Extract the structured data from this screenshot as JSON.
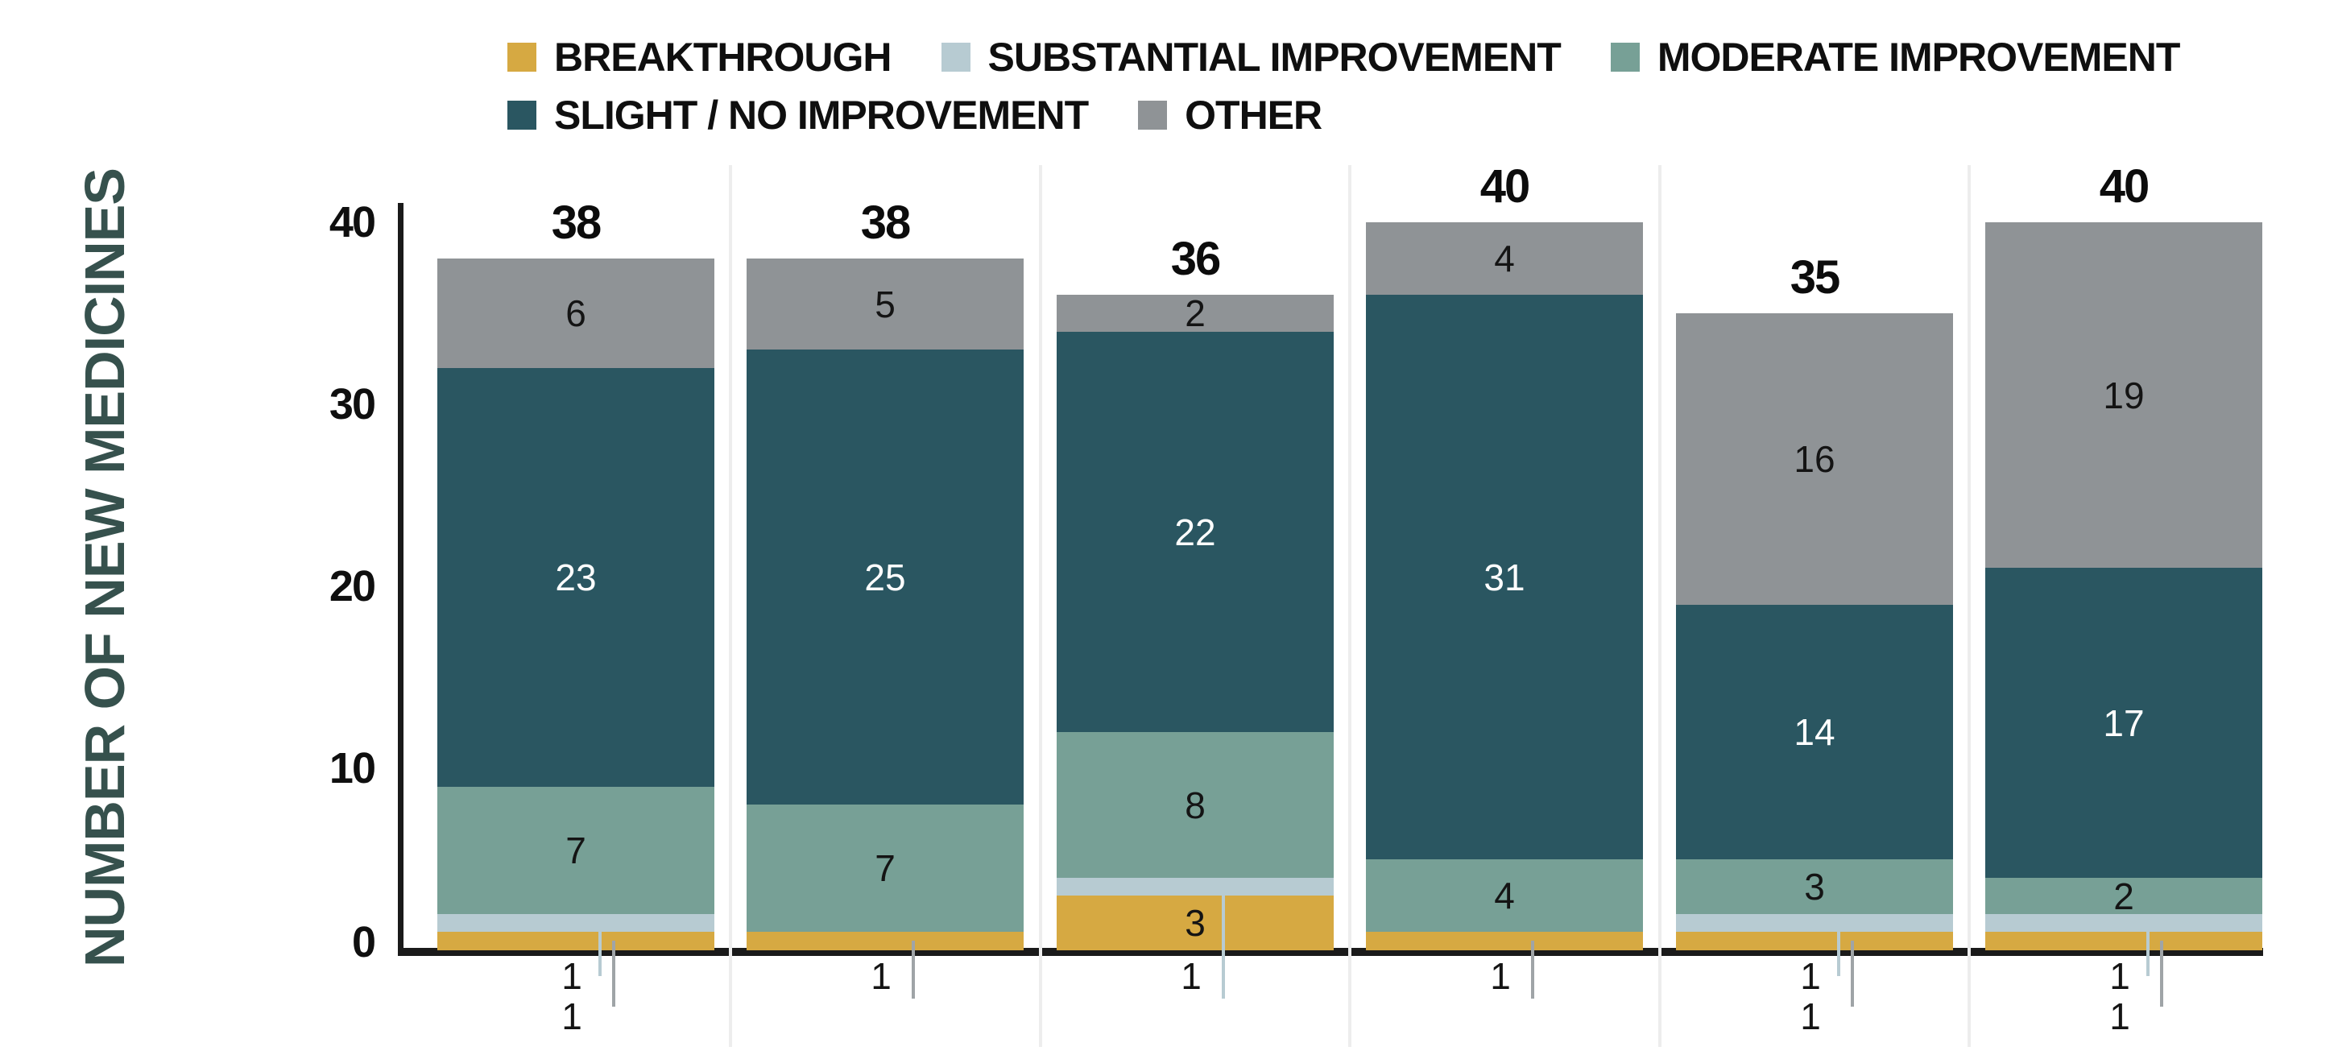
{
  "chart_data": {
    "type": "bar",
    "stacked": true,
    "title": "",
    "ylabel": "NUMBER OF NEW MEDICINES",
    "xlabel": "",
    "ylim": [
      0,
      40
    ],
    "yticks": [
      0,
      10,
      20,
      30,
      40
    ],
    "grid": "none",
    "legend_position": "top",
    "legend_rows": [
      [
        "BREAKTHROUGH",
        "SUBSTANTIAL IMPROVEMENT",
        "MODERATE IMPROVEMENT"
      ],
      [
        "SLIGHT / NO IMPROVEMENT",
        "OTHER"
      ]
    ],
    "series_colors": {
      "BREAKTHROUGH": "#D6A942",
      "SUBSTANTIAL IMPROVEMENT": "#B7CBD2",
      "MODERATE IMPROVEMENT": "#77A096",
      "SLIGHT / NO IMPROVEMENT": "#2A5661",
      "OTHER": "#8F9396"
    },
    "stack_order_bottom_to_top": [
      "BREAKTHROUGH",
      "SUBSTANTIAL IMPROVEMENT",
      "MODERATE IMPROVEMENT",
      "SLIGHT / NO IMPROVEMENT",
      "OTHER"
    ],
    "bars": [
      {
        "total": 38,
        "values": {
          "BREAKTHROUGH": 1,
          "SUBSTANTIAL IMPROVEMENT": 1,
          "MODERATE IMPROVEMENT": 7,
          "SLIGHT / NO IMPROVEMENT": 23,
          "OTHER": 6
        }
      },
      {
        "total": 38,
        "values": {
          "BREAKTHROUGH": 1,
          "SUBSTANTIAL IMPROVEMENT": 0,
          "MODERATE IMPROVEMENT": 7,
          "SLIGHT / NO IMPROVEMENT": 25,
          "OTHER": 5
        }
      },
      {
        "total": 36,
        "values": {
          "BREAKTHROUGH": 3,
          "SUBSTANTIAL IMPROVEMENT": 1,
          "MODERATE IMPROVEMENT": 8,
          "SLIGHT / NO IMPROVEMENT": 22,
          "OTHER": 2
        }
      },
      {
        "total": 40,
        "values": {
          "BREAKTHROUGH": 1,
          "SUBSTANTIAL IMPROVEMENT": 0,
          "MODERATE IMPROVEMENT": 4,
          "SLIGHT / NO IMPROVEMENT": 31,
          "OTHER": 4
        }
      },
      {
        "total": 35,
        "values": {
          "BREAKTHROUGH": 1,
          "SUBSTANTIAL IMPROVEMENT": 1,
          "MODERATE IMPROVEMENT": 3,
          "SLIGHT / NO IMPROVEMENT": 14,
          "OTHER": 16
        }
      },
      {
        "total": 40,
        "values": {
          "BREAKTHROUGH": 1,
          "SUBSTANTIAL IMPROVEMENT": 1,
          "MODERATE IMPROVEMENT": 2,
          "SLIGHT / NO IMPROVEMENT": 17,
          "OTHER": 19
        }
      }
    ],
    "callout_note": "segments with value 1 are labeled below the axis with leader lines",
    "callout_label_value": "1"
  },
  "style_colors": {
    "axis": "#1A1A1A",
    "ylabel_text": "#36514D",
    "separator": "#EDEDED",
    "leader_breakthrough": "#9FA4A7",
    "leader_substantial": "#B7CBD2",
    "label_on_dark": "#FFFFFF",
    "label_on_light": "#141414"
  }
}
